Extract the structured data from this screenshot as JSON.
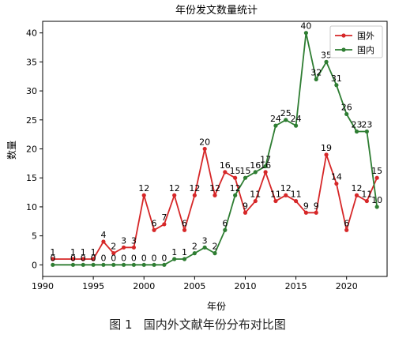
{
  "chart_data": {
    "type": "line",
    "title": "年份发文数量统计",
    "xlabel": "年份",
    "ylabel": "数量",
    "xlim": [
      1990,
      2024
    ],
    "ylim": [
      -2,
      42
    ],
    "xticks": [
      1990,
      1995,
      2000,
      2005,
      2010,
      2015,
      2020
    ],
    "yticks": [
      0,
      5,
      10,
      15,
      20,
      25,
      30,
      35,
      40
    ],
    "grid": false,
    "legend_position": "top-right",
    "series": [
      {
        "name": "国外",
        "color": "#d62728",
        "x": [
          1991,
          1993,
          1994,
          1995,
          1996,
          1997,
          1998,
          1999,
          2000,
          2001,
          2002,
          2003,
          2004,
          2005,
          2006,
          2007,
          2008,
          2009,
          2010,
          2011,
          2012,
          2013,
          2014,
          2015,
          2016,
          2017,
          2018,
          2019,
          2020,
          2021,
          2022,
          2023
        ],
        "values": [
          1,
          1,
          1,
          1,
          4,
          2,
          3,
          3,
          12,
          6,
          7,
          12,
          6,
          12,
          20,
          12,
          16,
          15,
          9,
          11,
          16,
          11,
          12,
          11,
          9,
          9,
          19,
          14,
          6,
          12,
          11,
          15
        ]
      },
      {
        "name": "国内",
        "color": "#2e7d32",
        "x": [
          1991,
          1993,
          1994,
          1995,
          1996,
          1997,
          1998,
          1999,
          2000,
          2001,
          2002,
          2003,
          2004,
          2005,
          2006,
          2007,
          2008,
          2009,
          2010,
          2011,
          2012,
          2013,
          2014,
          2015,
          2016,
          2017,
          2018,
          2019,
          2020,
          2021,
          2022,
          2023
        ],
        "values": [
          0,
          0,
          0,
          0,
          0,
          0,
          0,
          0,
          0,
          0,
          0,
          1,
          1,
          2,
          3,
          2,
          6,
          12,
          15,
          16,
          17,
          24,
          25,
          24,
          40,
          32,
          35,
          31,
          26,
          23,
          23,
          10
        ]
      }
    ]
  },
  "caption": "图 1   国内外文献年份分布对比图"
}
